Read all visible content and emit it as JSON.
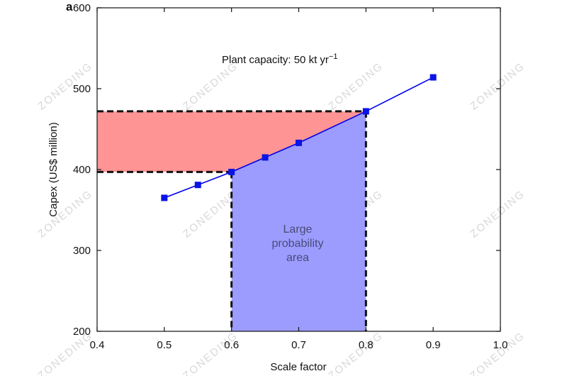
{
  "panel_label": "a",
  "watermark_text": "ZONEDING",
  "colors": {
    "series": "#0000ee",
    "marker": "#0a14e6",
    "red_fill": "#ff9494",
    "blue_fill": "#9c9cff",
    "dashed": "#111111"
  },
  "chart_data": {
    "type": "line",
    "xlabel": "Scale factor",
    "ylabel": "Capex (US$ million)",
    "xlim": [
      0.4,
      1.0
    ],
    "ylim": [
      200,
      600
    ],
    "xticks": [
      "0.4",
      "0.5",
      "0.6",
      "0.7",
      "0.8",
      "0.9",
      "1.0"
    ],
    "yticks": [
      "200",
      "300",
      "400",
      "500",
      "600"
    ],
    "grid": false,
    "series": [
      {
        "x": [
          0.5,
          0.55,
          0.6,
          0.65,
          0.7,
          0.8,
          0.9
        ],
        "y": [
          365,
          381,
          397,
          415,
          433,
          472,
          514
        ]
      }
    ],
    "annotations": {
      "plant_capacity": "Plant capacity: 50 kt yr",
      "plant_capacity_sup": "−1",
      "large_area_lines": [
        "Large",
        "probability",
        "area"
      ]
    },
    "shaded_regions": {
      "blue": {
        "x": [
          0.6,
          0.8
        ]
      },
      "red": {
        "y": [
          397,
          472
        ]
      }
    }
  }
}
